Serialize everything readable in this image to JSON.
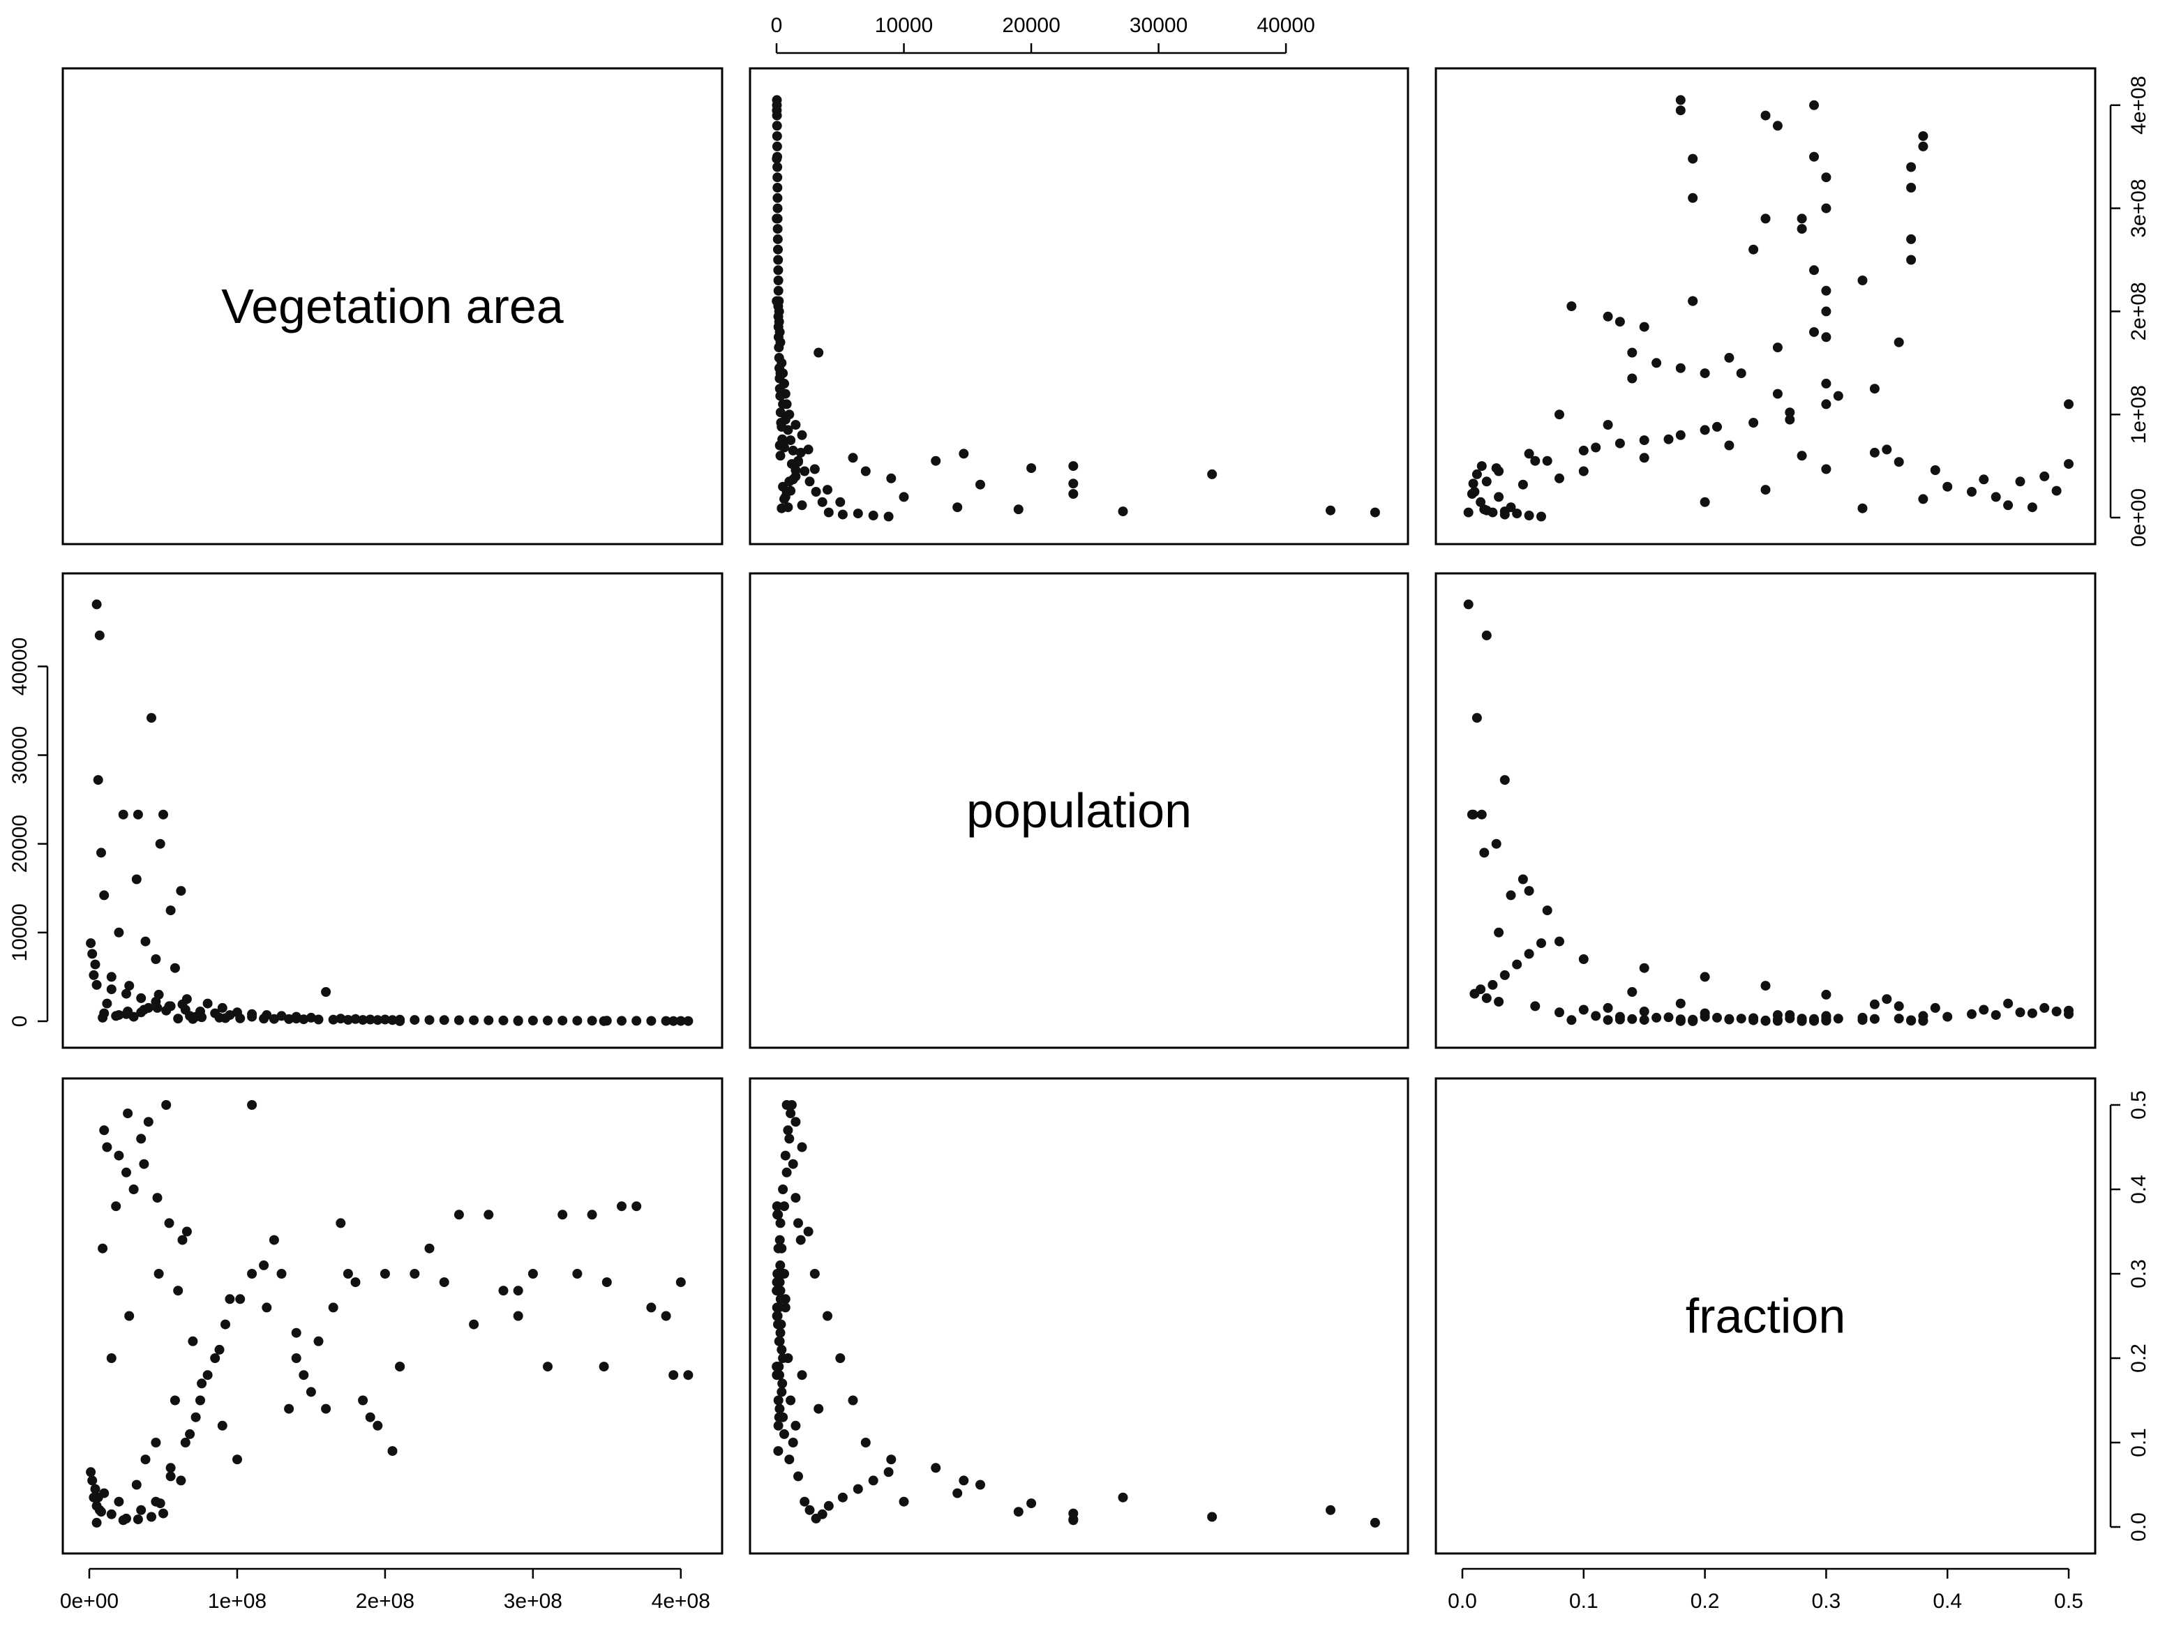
{
  "chart_data": {
    "type": "scatter",
    "kind": "scatterplot-matrix",
    "variables": [
      {
        "name": "Vegetation area",
        "range": [
          0,
          410000000
        ],
        "ticks": [
          0,
          100000000,
          200000000,
          300000000,
          400000000
        ],
        "tick_labels": [
          "0e+00",
          "1e+08",
          "2e+08",
          "3e+08",
          "4e+08"
        ]
      },
      {
        "name": "population",
        "range": [
          0,
          47500
        ],
        "ticks": [
          0,
          10000,
          20000,
          30000,
          40000
        ],
        "tick_labels": [
          "0",
          "10000",
          "20000",
          "30000",
          "40000"
        ]
      },
      {
        "name": "fraction",
        "range": [
          0,
          0.5
        ],
        "ticks": [
          0,
          0.1,
          0.2,
          0.3,
          0.4,
          0.5
        ],
        "tick_labels": [
          "0.0",
          "0.1",
          "0.2",
          "0.3",
          "0.4",
          "0.5"
        ]
      }
    ],
    "axes": {
      "top": [
        "population"
      ],
      "right": [
        "Vegetation area",
        "fraction"
      ],
      "left": [
        "population"
      ],
      "bottom": [
        "Vegetation area",
        "fraction"
      ]
    },
    "points": [
      [
        5000000,
        47000,
        0.005
      ],
      [
        7000000,
        43500,
        0.02
      ],
      [
        42000000,
        34200,
        0.012
      ],
      [
        6000000,
        27200,
        0.035
      ],
      [
        23000000,
        23300,
        0.008
      ],
      [
        33000000,
        23300,
        0.009
      ],
      [
        50000000,
        23300,
        0.016
      ],
      [
        48000000,
        20000,
        0.028
      ],
      [
        8000000,
        19000,
        0.018
      ],
      [
        32000000,
        16000,
        0.05
      ],
      [
        10000000,
        14200,
        0.04
      ],
      [
        62000000,
        14700,
        0.055
      ],
      [
        55000000,
        12500,
        0.07
      ],
      [
        20000000,
        10000,
        0.03
      ],
      [
        38000000,
        9000,
        0.08
      ],
      [
        45000000,
        7000,
        0.1
      ],
      [
        58000000,
        6000,
        0.15
      ],
      [
        15000000,
        5000,
        0.2
      ],
      [
        27000000,
        4000,
        0.25
      ],
      [
        47000000,
        3000,
        0.3
      ],
      [
        66000000,
        2500,
        0.35
      ],
      [
        12000000,
        2000,
        0.45
      ],
      [
        40000000,
        1500,
        0.48
      ],
      [
        52000000,
        1200,
        0.5
      ],
      [
        35000000,
        1000,
        0.46
      ],
      [
        25000000,
        800,
        0.42
      ],
      [
        18000000,
        600,
        0.38
      ],
      [
        9000000,
        400,
        0.33
      ],
      [
        60000000,
        300,
        0.28
      ],
      [
        70000000,
        250,
        0.22
      ],
      [
        80000000,
        2000,
        0.18
      ],
      [
        90000000,
        1500,
        0.12
      ],
      [
        100000000,
        1000,
        0.08
      ],
      [
        110000000,
        800,
        0.5
      ],
      [
        120000000,
        700,
        0.26
      ],
      [
        130000000,
        600,
        0.3
      ],
      [
        140000000,
        500,
        0.2
      ],
      [
        150000000,
        400,
        0.16
      ],
      [
        160000000,
        3300,
        0.14
      ],
      [
        170000000,
        300,
        0.36
      ],
      [
        180000000,
        250,
        0.29
      ],
      [
        190000000,
        200,
        0.13
      ],
      [
        200000000,
        200,
        0.3
      ],
      [
        210000000,
        180,
        0.19
      ],
      [
        220000000,
        150,
        0.3
      ],
      [
        230000000,
        140,
        0.33
      ],
      [
        240000000,
        130,
        0.29
      ],
      [
        250000000,
        120,
        0.37
      ],
      [
        260000000,
        110,
        0.24
      ],
      [
        270000000,
        100,
        0.37
      ],
      [
        280000000,
        90,
        0.28
      ],
      [
        290000000,
        85,
        0.25
      ],
      [
        300000000,
        80,
        0.3
      ],
      [
        310000000,
        75,
        0.19
      ],
      [
        320000000,
        70,
        0.37
      ],
      [
        330000000,
        65,
        0.3
      ],
      [
        340000000,
        60,
        0.37
      ],
      [
        350000000,
        55,
        0.29
      ],
      [
        360000000,
        50,
        0.38
      ],
      [
        370000000,
        45,
        0.38
      ],
      [
        380000000,
        40,
        0.26
      ],
      [
        390000000,
        35,
        0.25
      ],
      [
        400000000,
        30,
        0.29
      ],
      [
        405000000,
        25,
        0.18
      ],
      [
        395000000,
        20,
        0.18
      ],
      [
        348000000,
        15,
        0.19
      ],
      [
        290000000,
        12,
        0.28
      ],
      [
        210000000,
        10,
        0.19
      ],
      [
        140000000,
        300,
        0.23
      ],
      [
        110000000,
        500,
        0.3
      ],
      [
        95000000,
        700,
        0.27
      ],
      [
        85000000,
        900,
        0.2
      ],
      [
        75000000,
        1100,
        0.15
      ],
      [
        65000000,
        1300,
        0.1
      ],
      [
        55000000,
        1700,
        0.06
      ],
      [
        45000000,
        2200,
        0.03
      ],
      [
        35000000,
        2600,
        0.02
      ],
      [
        25000000,
        3100,
        0.01
      ],
      [
        15000000,
        3600,
        0.015
      ],
      [
        5000000,
        4100,
        0.025
      ],
      [
        3000000,
        5200,
        0.035
      ],
      [
        4000000,
        6400,
        0.045
      ],
      [
        2000000,
        7600,
        0.055
      ],
      [
        1000000,
        8800,
        0.065
      ],
      [
        68000000,
        600,
        0.11
      ],
      [
        72000000,
        500,
        0.13
      ],
      [
        76000000,
        450,
        0.17
      ],
      [
        88000000,
        400,
        0.21
      ],
      [
        92000000,
        350,
        0.24
      ],
      [
        102000000,
        320,
        0.27
      ],
      [
        118000000,
        290,
        0.31
      ],
      [
        125000000,
        260,
        0.34
      ],
      [
        135000000,
        240,
        0.14
      ],
      [
        145000000,
        220,
        0.18
      ],
      [
        155000000,
        200,
        0.22
      ],
      [
        165000000,
        180,
        0.26
      ],
      [
        175000000,
        160,
        0.3
      ],
      [
        185000000,
        150,
        0.15
      ],
      [
        195000000,
        140,
        0.12
      ],
      [
        205000000,
        130,
        0.09
      ],
      [
        30000000,
        500,
        0.4
      ],
      [
        20000000,
        700,
        0.44
      ],
      [
        10000000,
        900,
        0.47
      ],
      [
        26000000,
        1100,
        0.49
      ],
      [
        37000000,
        1300,
        0.43
      ],
      [
        46000000,
        1500,
        0.39
      ],
      [
        54000000,
        1700,
        0.36
      ],
      [
        63000000,
        1900,
        0.34
      ]
    ]
  }
}
